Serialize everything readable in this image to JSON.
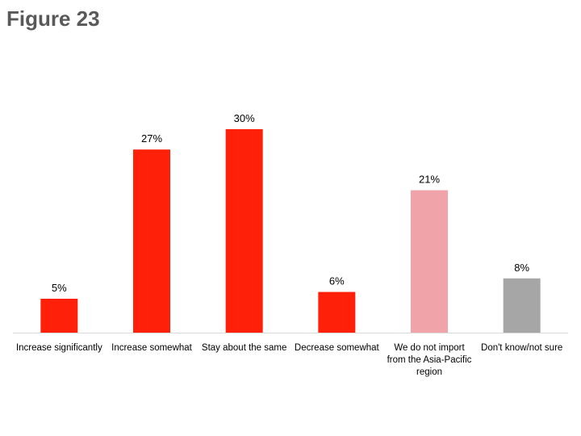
{
  "chart_data": {
    "type": "bar",
    "title": "Figure 23",
    "categories": [
      "Increase significantly",
      "Increase somewhat",
      "Stay about the same",
      "Decrease somewhat",
      "We do not import from the Asia-Pacific region",
      "Don't know/not sure"
    ],
    "values": [
      5,
      27,
      30,
      6,
      21,
      8
    ],
    "value_labels": [
      "5%",
      "27%",
      "30%",
      "6%",
      "21%",
      "8%"
    ],
    "colors": [
      "#ff2009",
      "#ff2009",
      "#ff2009",
      "#ff2009",
      "#f0a3a8",
      "#a6a6a6"
    ]
  }
}
